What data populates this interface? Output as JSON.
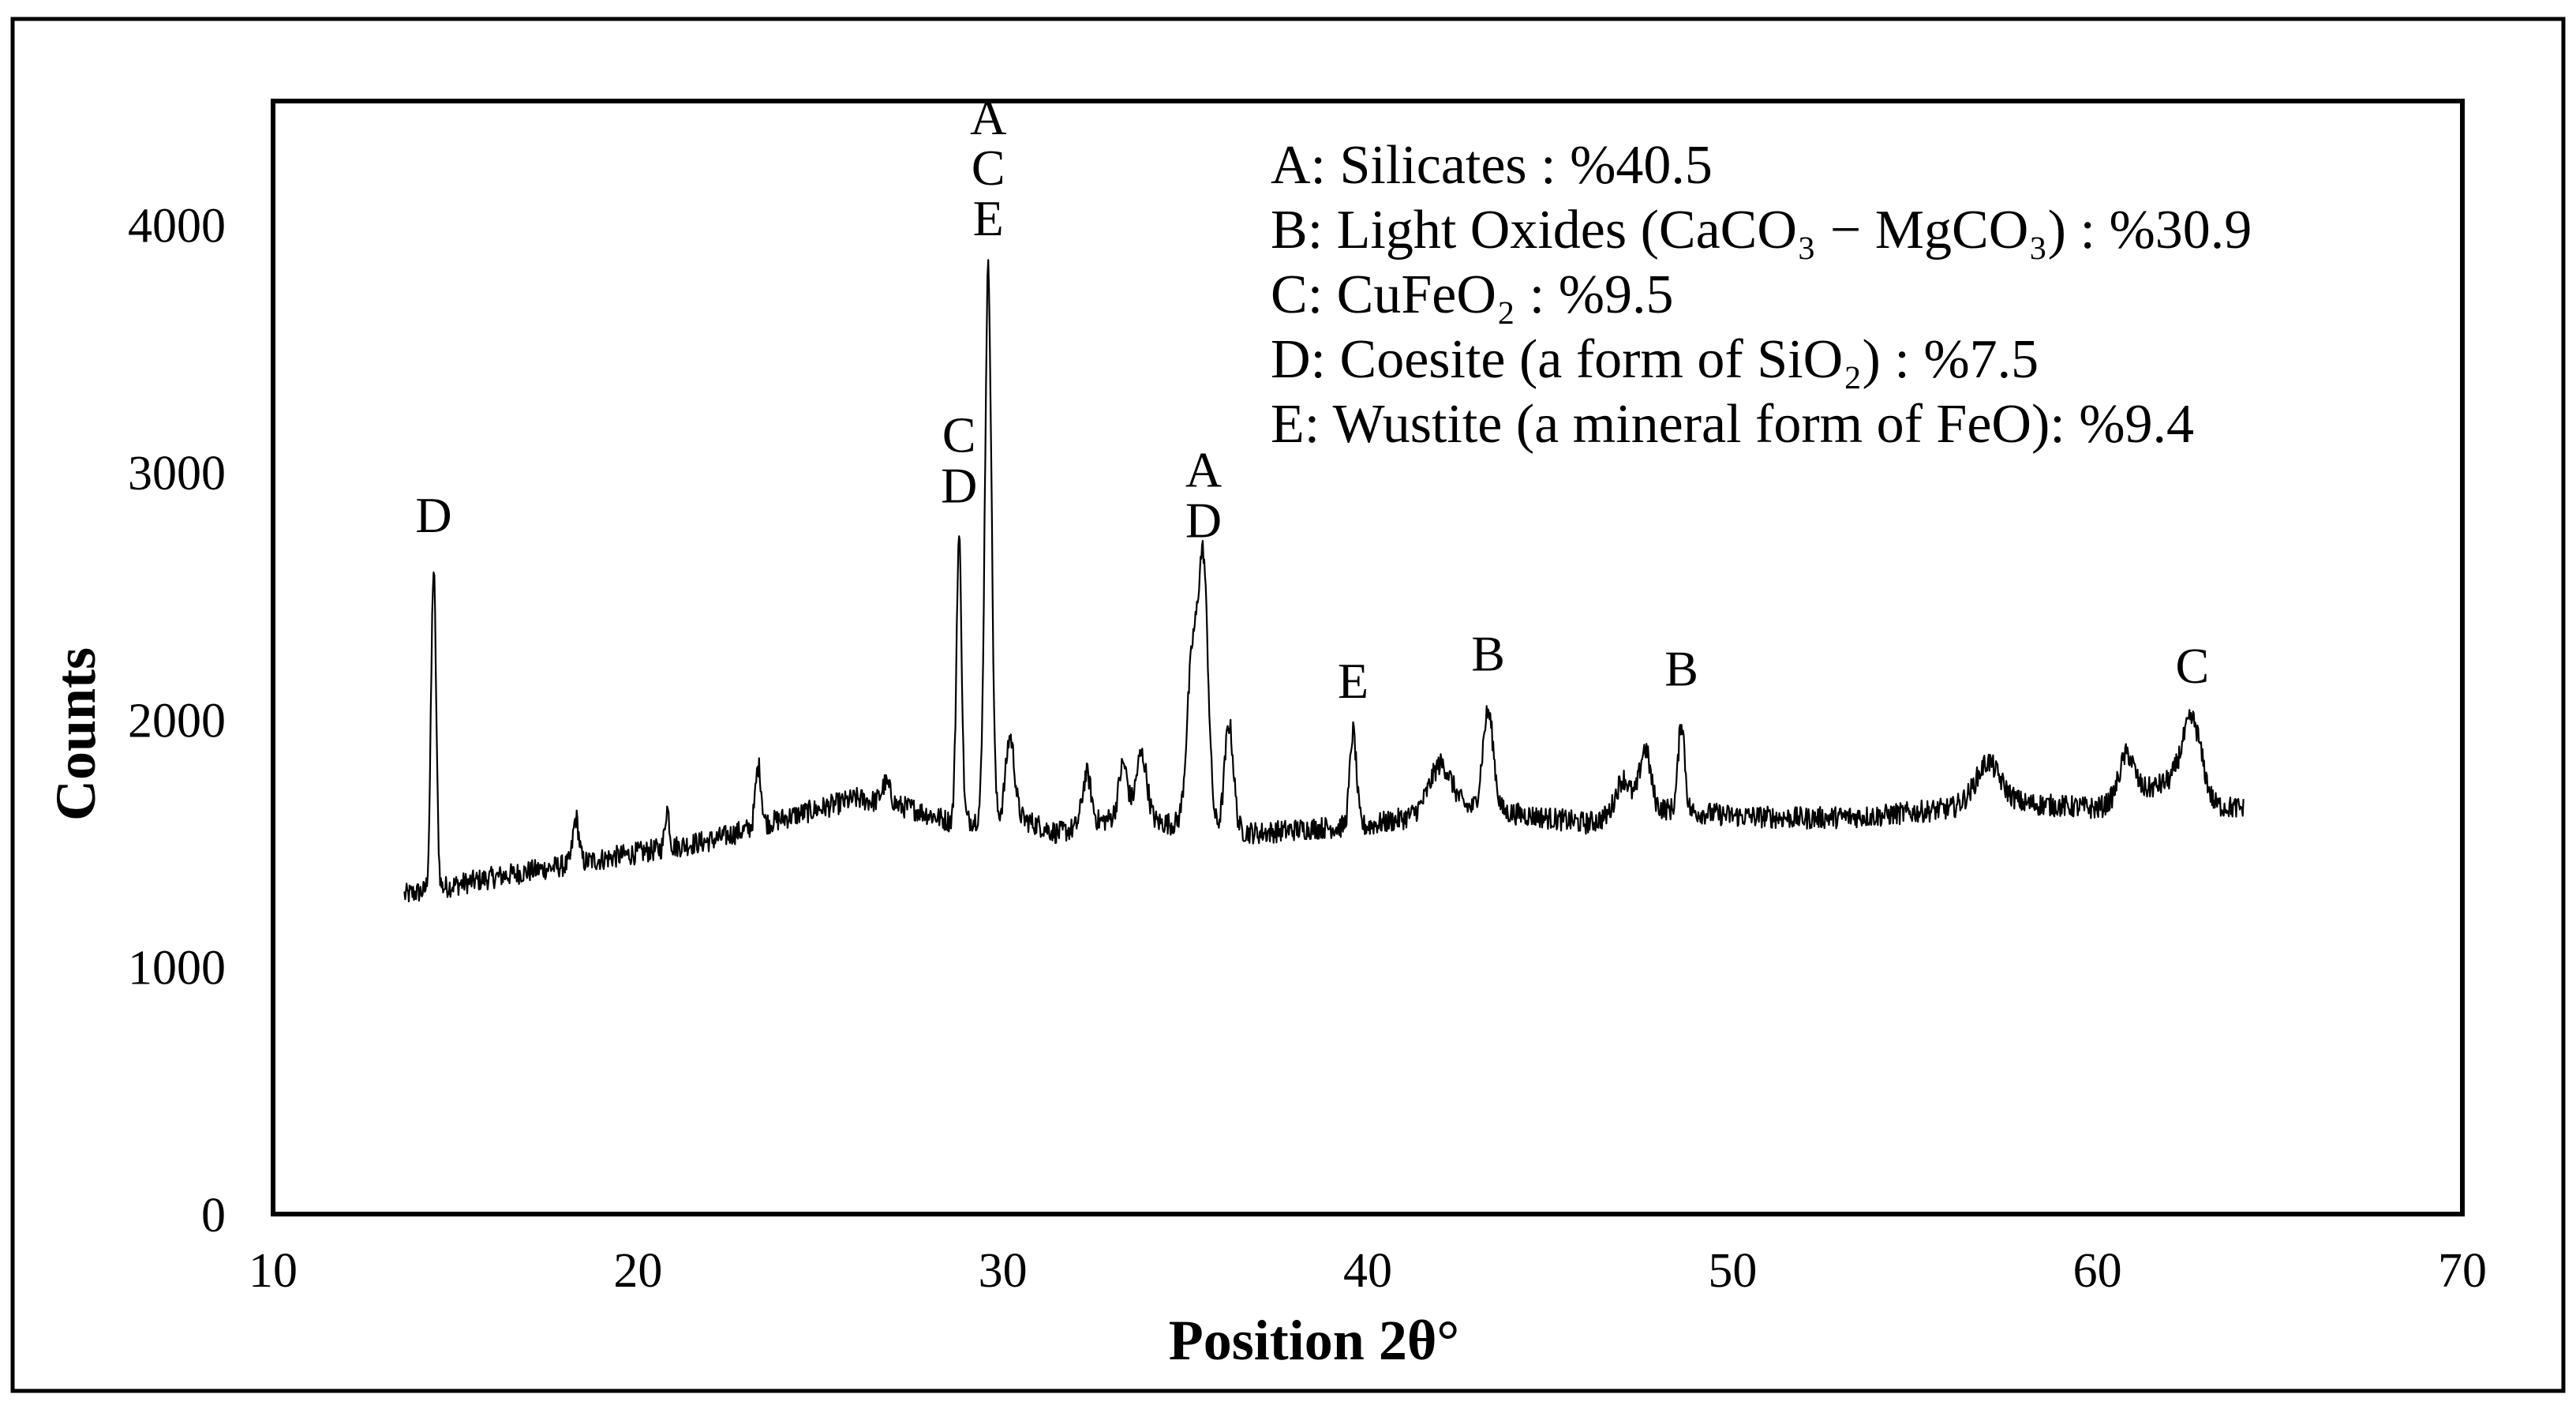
{
  "chart_data": {
    "type": "line",
    "title": "",
    "xlabel": "Position 2θ°",
    "ylabel": "Counts",
    "xlim": [
      10,
      70
    ],
    "ylim": [
      0,
      4500
    ],
    "xticks": [
      "10",
      "20",
      "30",
      "40",
      "50",
      "60",
      "70"
    ],
    "yticks": [
      "0",
      "1000",
      "2000",
      "3000",
      "4000"
    ],
    "grid": false,
    "legend_position": "top-right",
    "legend": [
      {
        "letter": "A",
        "text": "A: Silicates : %40.5"
      },
      {
        "letter": "B",
        "text": "B: Light Oxides (CaCO₃ − MgCO₃) : %30.9"
      },
      {
        "letter": "C",
        "text": "C: CuFeO₂ : %9.5"
      },
      {
        "letter": "D",
        "text": "D: Coesite (a form of SiO₂) : %7.5"
      },
      {
        "letter": "E",
        "text": "E: Wustite (a mineral form of FeO): %9.4"
      }
    ],
    "baseline": [
      [
        13.6,
        1290
      ],
      [
        16,
        1360
      ],
      [
        18,
        1410
      ],
      [
        20,
        1460
      ],
      [
        22,
        1510
      ],
      [
        24,
        1600
      ],
      [
        26,
        1680
      ],
      [
        27.5,
        1640
      ],
      [
        28.5,
        1590
      ],
      [
        30.5,
        1600
      ],
      [
        31.5,
        1540
      ],
      [
        33,
        1600
      ],
      [
        34.5,
        1580
      ],
      [
        37,
        1540
      ],
      [
        38.5,
        1560
      ],
      [
        40,
        1570
      ],
      [
        41,
        1600
      ],
      [
        42,
        1650
      ],
      [
        44,
        1620
      ],
      [
        46,
        1580
      ],
      [
        47,
        1620
      ],
      [
        48,
        1640
      ],
      [
        50,
        1610
      ],
      [
        52,
        1600
      ],
      [
        54,
        1610
      ],
      [
        56,
        1640
      ],
      [
        57,
        1720
      ],
      [
        58,
        1660
      ],
      [
        60,
        1640
      ],
      [
        61,
        1700
      ],
      [
        62.2,
        1760
      ],
      [
        63.2,
        1650
      ],
      [
        64,
        1640
      ]
    ],
    "peaks": [
      {
        "x": 14.4,
        "counts": 2600,
        "width": 0.07
      },
      {
        "x": 18.3,
        "counts": 1600,
        "width": 0.08
      },
      {
        "x": 20.8,
        "counts": 1640,
        "width": 0.06
      },
      {
        "x": 23.3,
        "counts": 1810,
        "width": 0.08
      },
      {
        "x": 26.8,
        "counts": 1740,
        "width": 0.12
      },
      {
        "x": 28.8,
        "counts": 2740,
        "width": 0.07
      },
      {
        "x": 29.6,
        "counts": 3820,
        "width": 0.09
      },
      {
        "x": 30.2,
        "counts": 1930,
        "width": 0.12
      },
      {
        "x": 32.3,
        "counts": 1780,
        "width": 0.12
      },
      {
        "x": 33.3,
        "counts": 1820,
        "width": 0.12
      },
      {
        "x": 33.8,
        "counts": 1860,
        "width": 0.15
      },
      {
        "x": 35.5,
        "counts": 2580,
        "width": 0.13
      },
      {
        "x": 35.2,
        "counts": 2250,
        "width": 0.15
      },
      {
        "x": 36.2,
        "counts": 1980,
        "width": 0.12
      },
      {
        "x": 39.6,
        "counts": 1950,
        "width": 0.09
      },
      {
        "x": 42.0,
        "counts": 1820,
        "width": 0.3
      },
      {
        "x": 43.3,
        "counts": 2030,
        "width": 0.15
      },
      {
        "x": 47.0,
        "counts": 1760,
        "width": 0.2
      },
      {
        "x": 47.6,
        "counts": 1880,
        "width": 0.15
      },
      {
        "x": 48.6,
        "counts": 1990,
        "width": 0.09
      },
      {
        "x": 57.0,
        "counts": 1830,
        "width": 0.3
      },
      {
        "x": 60.8,
        "counts": 1860,
        "width": 0.2
      },
      {
        "x": 62.6,
        "counts": 2000,
        "width": 0.25
      }
    ],
    "x_end": 64.0,
    "annotations": [
      {
        "labels": [
          "D"
        ],
        "x": 14.4,
        "counts": 2700
      },
      {
        "labels": [
          "C",
          "D"
        ],
        "x": 28.8,
        "counts": 2820
      },
      {
        "labels": [
          "A",
          "C",
          "E"
        ],
        "x": 29.6,
        "counts": 3900
      },
      {
        "labels": [
          "A",
          "D"
        ],
        "x": 35.5,
        "counts": 2680
      },
      {
        "labels": [
          "E"
        ],
        "x": 39.6,
        "counts": 2030
      },
      {
        "labels": [
          "B"
        ],
        "x": 43.3,
        "counts": 2140
      },
      {
        "labels": [
          "B"
        ],
        "x": 48.6,
        "counts": 2080
      },
      {
        "labels": [
          "C"
        ],
        "x": 62.6,
        "counts": 2090
      }
    ]
  }
}
